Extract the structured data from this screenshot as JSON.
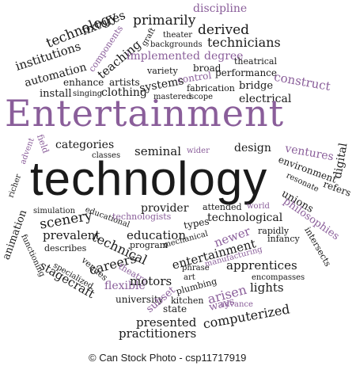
{
  "title_line1": "Entertainment",
  "title_line2": "technology",
  "words": {
    "technology": "technology",
    "fixtures": "fixtures",
    "discipline": "discipline",
    "primarily": "primarily",
    "institutions": "institutions",
    "components": "components",
    "graft": "graft",
    "theater": "theater",
    "derived": "derived",
    "automation": "automation",
    "teaching": "teaching",
    "backgrounds": "backgrounds",
    "technicians": "technicians",
    "implemented": "implemented",
    "degree": "degree",
    "theatrical": "theatrical",
    "broad": "broad",
    "variety": "variety",
    "control": "control",
    "performance": "performance",
    "enhance": "enhance",
    "artists": "artists",
    "systems": "systems",
    "bridge": "bridge",
    "construct": "construct",
    "install": "install",
    "singing": "singing",
    "clothing": "clothing",
    "fabrication": "fabrication",
    "mastered": "mastered",
    "scope": "scope",
    "electrical": "electrical",
    "advent": "advent",
    "field": "field",
    "categories": "categories",
    "classes": "classes",
    "seminal": "seminal",
    "wider": "wider",
    "design": "design",
    "ventures": "ventures",
    "digital": "digital",
    "environment": "environment",
    "refers": "refers",
    "resonate": "resonate",
    "richer": "richer",
    "unions": "unions",
    "philosophies": "philosophies",
    "simulation": "simulation",
    "educational": "educational",
    "technologists": "technologists",
    "provider": "provider",
    "animation": "animation",
    "attended": "attended",
    "world": "world",
    "technological": "technological",
    "scenery": "scenery",
    "types": "types",
    "prevalent": "prevalent",
    "newer": "newer",
    "rapidly": "rapidly",
    "infancy": "infancy",
    "intersects": "intersects",
    "education": "education",
    "describes": "describes",
    "functioning": "functioning",
    "technical": "technical",
    "program": "program",
    "mechanical": "mechanical",
    "entertainment": "entertainment",
    "careers": "careers",
    "venues": "venues",
    "manufacturing": "manufacturing",
    "phrase": "phrase",
    "apprentices": "apprentices",
    "specialized": "specialized",
    "theatre": "theatre",
    "stagecraft": "stagecraft",
    "encompasses": "encompasses",
    "art": "art",
    "lights": "lights",
    "flexible": "flexible",
    "motors": "motors",
    "plumbing": "plumbing",
    "arisen": "arisen",
    "university": "university",
    "subset": "subset",
    "ways": "ways",
    "state": "state",
    "kitchen": "kitchen",
    "advance": "advance",
    "computerized": "computerized",
    "presented": "presented",
    "practitioners": "practitioners"
  },
  "footer": {
    "copyright": "© Can Stock Photo - csp11717919"
  },
  "colors": {
    "purple": "#8a5e9a",
    "dark": "#1a1a1a"
  }
}
